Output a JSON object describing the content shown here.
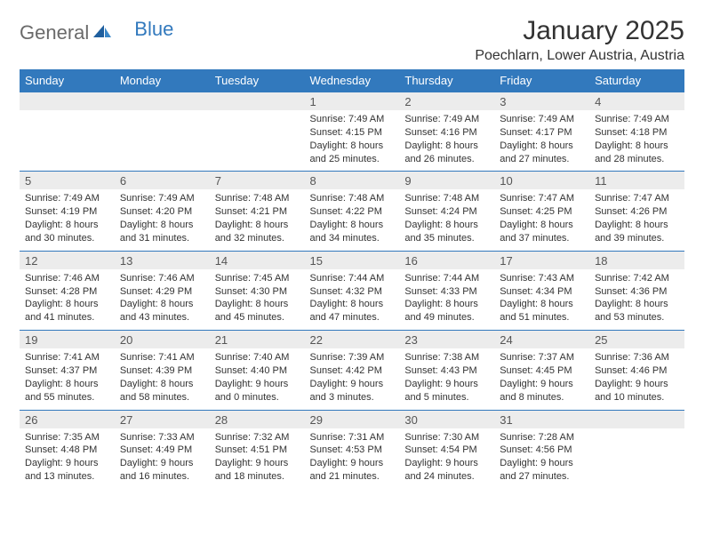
{
  "logo": {
    "text1": "General",
    "text2": "Blue"
  },
  "title": "January 2025",
  "location": "Poechlarn, Lower Austria, Austria",
  "colors": {
    "header_bg": "#3279bd",
    "header_text": "#ffffff",
    "daynum_bg": "#ececec",
    "rule": "#3279bd",
    "text": "#333333"
  },
  "day_headers": [
    "Sunday",
    "Monday",
    "Tuesday",
    "Wednesday",
    "Thursday",
    "Friday",
    "Saturday"
  ],
  "weeks": [
    {
      "nums": [
        "",
        "",
        "",
        "1",
        "2",
        "3",
        "4"
      ],
      "details": [
        null,
        null,
        null,
        {
          "sunrise": "7:49 AM",
          "sunset": "4:15 PM",
          "daylight": "8 hours and 25 minutes."
        },
        {
          "sunrise": "7:49 AM",
          "sunset": "4:16 PM",
          "daylight": "8 hours and 26 minutes."
        },
        {
          "sunrise": "7:49 AM",
          "sunset": "4:17 PM",
          "daylight": "8 hours and 27 minutes."
        },
        {
          "sunrise": "7:49 AM",
          "sunset": "4:18 PM",
          "daylight": "8 hours and 28 minutes."
        }
      ]
    },
    {
      "nums": [
        "5",
        "6",
        "7",
        "8",
        "9",
        "10",
        "11"
      ],
      "details": [
        {
          "sunrise": "7:49 AM",
          "sunset": "4:19 PM",
          "daylight": "8 hours and 30 minutes."
        },
        {
          "sunrise": "7:49 AM",
          "sunset": "4:20 PM",
          "daylight": "8 hours and 31 minutes."
        },
        {
          "sunrise": "7:48 AM",
          "sunset": "4:21 PM",
          "daylight": "8 hours and 32 minutes."
        },
        {
          "sunrise": "7:48 AM",
          "sunset": "4:22 PM",
          "daylight": "8 hours and 34 minutes."
        },
        {
          "sunrise": "7:48 AM",
          "sunset": "4:24 PM",
          "daylight": "8 hours and 35 minutes."
        },
        {
          "sunrise": "7:47 AM",
          "sunset": "4:25 PM",
          "daylight": "8 hours and 37 minutes."
        },
        {
          "sunrise": "7:47 AM",
          "sunset": "4:26 PM",
          "daylight": "8 hours and 39 minutes."
        }
      ]
    },
    {
      "nums": [
        "12",
        "13",
        "14",
        "15",
        "16",
        "17",
        "18"
      ],
      "details": [
        {
          "sunrise": "7:46 AM",
          "sunset": "4:28 PM",
          "daylight": "8 hours and 41 minutes."
        },
        {
          "sunrise": "7:46 AM",
          "sunset": "4:29 PM",
          "daylight": "8 hours and 43 minutes."
        },
        {
          "sunrise": "7:45 AM",
          "sunset": "4:30 PM",
          "daylight": "8 hours and 45 minutes."
        },
        {
          "sunrise": "7:44 AM",
          "sunset": "4:32 PM",
          "daylight": "8 hours and 47 minutes."
        },
        {
          "sunrise": "7:44 AM",
          "sunset": "4:33 PM",
          "daylight": "8 hours and 49 minutes."
        },
        {
          "sunrise": "7:43 AM",
          "sunset": "4:34 PM",
          "daylight": "8 hours and 51 minutes."
        },
        {
          "sunrise": "7:42 AM",
          "sunset": "4:36 PM",
          "daylight": "8 hours and 53 minutes."
        }
      ]
    },
    {
      "nums": [
        "19",
        "20",
        "21",
        "22",
        "23",
        "24",
        "25"
      ],
      "details": [
        {
          "sunrise": "7:41 AM",
          "sunset": "4:37 PM",
          "daylight": "8 hours and 55 minutes."
        },
        {
          "sunrise": "7:41 AM",
          "sunset": "4:39 PM",
          "daylight": "8 hours and 58 minutes."
        },
        {
          "sunrise": "7:40 AM",
          "sunset": "4:40 PM",
          "daylight": "9 hours and 0 minutes."
        },
        {
          "sunrise": "7:39 AM",
          "sunset": "4:42 PM",
          "daylight": "9 hours and 3 minutes."
        },
        {
          "sunrise": "7:38 AM",
          "sunset": "4:43 PM",
          "daylight": "9 hours and 5 minutes."
        },
        {
          "sunrise": "7:37 AM",
          "sunset": "4:45 PM",
          "daylight": "9 hours and 8 minutes."
        },
        {
          "sunrise": "7:36 AM",
          "sunset": "4:46 PM",
          "daylight": "9 hours and 10 minutes."
        }
      ]
    },
    {
      "nums": [
        "26",
        "27",
        "28",
        "29",
        "30",
        "31",
        ""
      ],
      "details": [
        {
          "sunrise": "7:35 AM",
          "sunset": "4:48 PM",
          "daylight": "9 hours and 13 minutes."
        },
        {
          "sunrise": "7:33 AM",
          "sunset": "4:49 PM",
          "daylight": "9 hours and 16 minutes."
        },
        {
          "sunrise": "7:32 AM",
          "sunset": "4:51 PM",
          "daylight": "9 hours and 18 minutes."
        },
        {
          "sunrise": "7:31 AM",
          "sunset": "4:53 PM",
          "daylight": "9 hours and 21 minutes."
        },
        {
          "sunrise": "7:30 AM",
          "sunset": "4:54 PM",
          "daylight": "9 hours and 24 minutes."
        },
        {
          "sunrise": "7:28 AM",
          "sunset": "4:56 PM",
          "daylight": "9 hours and 27 minutes."
        },
        null
      ]
    }
  ],
  "labels": {
    "sunrise": "Sunrise:",
    "sunset": "Sunset:",
    "daylight": "Daylight:"
  }
}
